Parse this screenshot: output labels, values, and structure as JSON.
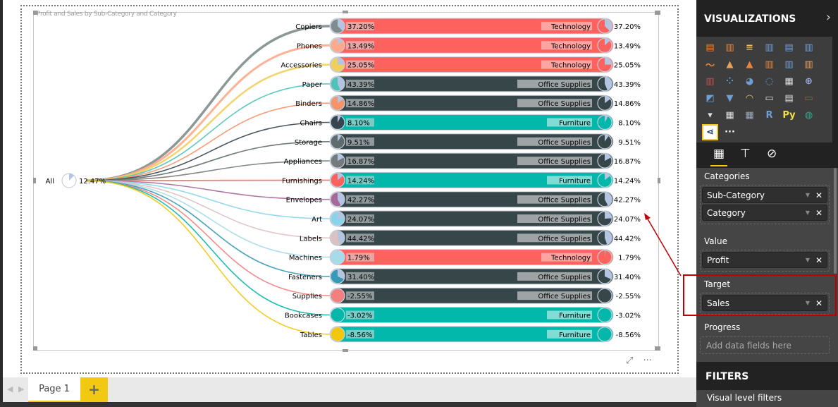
{
  "visual": {
    "title": "Profit and Sales by Sub-Category and Category",
    "root": {
      "label": "All",
      "value": "12.47%",
      "fraction": 0.1247
    },
    "footer_icons": [
      "focus-mode-icon",
      "more-options-icon"
    ],
    "more_label": "···",
    "focus_label": "⤢"
  },
  "colors": {
    "Technology": "#fd625e",
    "Office Supplies": "#374649",
    "Furniture": "#01b8aa",
    "label_bg": {
      "Technology": "#fba4a2",
      "Office Supplies": "#9ea4a5",
      "Furniture": "#80dcd4"
    },
    "target_slice": "#b3c5e0",
    "highlight": "#c00000"
  },
  "chart_data": {
    "type": "table",
    "title": "Profit and Sales by Sub-Category and Category",
    "rows": [
      {
        "sub": "Copiers",
        "value": "37.20%",
        "frac": 0.372,
        "category": "Technology",
        "color": "#7f8c8d"
      },
      {
        "sub": "Phones",
        "value": "13.49%",
        "frac": 0.1349,
        "category": "Technology",
        "color": "#fda98a"
      },
      {
        "sub": "Accessories",
        "value": "25.05%",
        "frac": 0.2505,
        "category": "Technology",
        "color": "#f2cf5b"
      },
      {
        "sub": "Paper",
        "value": "43.39%",
        "frac": 0.4339,
        "category": "Office Supplies",
        "color": "#4ec3b9"
      },
      {
        "sub": "Binders",
        "value": "14.86%",
        "frac": 0.1486,
        "category": "Office Supplies",
        "color": "#f5946a"
      },
      {
        "sub": "Chairs",
        "value": "8.10%",
        "frac": 0.081,
        "category": "Furniture",
        "color": "#36454f"
      },
      {
        "sub": "Storage",
        "value": "9.51%",
        "frac": 0.0951,
        "category": "Office Supplies",
        "color": "#5f6b6d"
      },
      {
        "sub": "Appliances",
        "value": "16.87%",
        "frac": 0.1687,
        "category": "Office Supplies",
        "color": "#737b7d"
      },
      {
        "sub": "Furnishings",
        "value": "14.24%",
        "frac": 0.1424,
        "category": "Furniture",
        "color": "#fc625e"
      },
      {
        "sub": "Envelopes",
        "value": "42.27%",
        "frac": 0.4227,
        "category": "Office Supplies",
        "color": "#a66999"
      },
      {
        "sub": "Art",
        "value": "24.07%",
        "frac": 0.2407,
        "category": "Office Supplies",
        "color": "#8ad4eb"
      },
      {
        "sub": "Labels",
        "value": "44.42%",
        "frac": 0.4442,
        "category": "Office Supplies",
        "color": "#dfbfbf"
      },
      {
        "sub": "Machines",
        "value": "1.79%",
        "frac": 0.0179,
        "category": "Technology",
        "color": "#a6dcea"
      },
      {
        "sub": "Fasteners",
        "value": "31.40%",
        "frac": 0.314,
        "category": "Office Supplies",
        "color": "#3599b8"
      },
      {
        "sub": "Supplies",
        "value": "-2.55%",
        "frac": -0.0255,
        "category": "Office Supplies",
        "color": "#f47f7f"
      },
      {
        "sub": "Bookcases",
        "value": "-3.02%",
        "frac": -0.0302,
        "category": "Furniture",
        "color": "#01b8aa"
      },
      {
        "sub": "Tables",
        "value": "-8.56%",
        "frac": -0.0856,
        "category": "Furniture",
        "color": "#f2c80f"
      }
    ]
  },
  "tabs": {
    "page": "Page 1",
    "add": "+",
    "prev": "◀",
    "next": "▶"
  },
  "panel": {
    "title": "VISUALIZATIONS",
    "collapse": "›",
    "viz_icons": [
      {
        "name": "stacked-bar-icon",
        "g": "▤",
        "c": "#e8833a"
      },
      {
        "name": "stacked-column-icon",
        "g": "▥",
        "c": "#e8833a"
      },
      {
        "name": "clustered-bar-icon",
        "g": "≡",
        "c": "#e8c15a"
      },
      {
        "name": "clustered-column-icon",
        "g": "▥",
        "c": "#6f9fd8"
      },
      {
        "name": "100-stacked-bar-icon",
        "g": "▤",
        "c": "#6f9fd8"
      },
      {
        "name": "100-stacked-column-icon",
        "g": "▥",
        "c": "#6f9fd8"
      },
      {
        "name": "line-chart-icon",
        "g": "〜",
        "c": "#e8833a"
      },
      {
        "name": "area-chart-icon",
        "g": "▲",
        "c": "#e8a05a"
      },
      {
        "name": "stacked-area-icon",
        "g": "▲",
        "c": "#e8833a"
      },
      {
        "name": "line-column-icon",
        "g": "▥",
        "c": "#e8833a"
      },
      {
        "name": "line-clustered-column-icon",
        "g": "▥",
        "c": "#6f9fd8"
      },
      {
        "name": "ribbon-chart-icon",
        "g": "▥",
        "c": "#e8a05a"
      },
      {
        "name": "waterfall-icon",
        "g": "▥",
        "c": "#c0504d"
      },
      {
        "name": "scatter-icon",
        "g": "⁘",
        "c": "#6f9fd8"
      },
      {
        "name": "pie-chart-icon",
        "g": "◕",
        "c": "#6f9fd8"
      },
      {
        "name": "donut-chart-icon",
        "g": "◌",
        "c": "#6f9fd8"
      },
      {
        "name": "treemap-icon",
        "g": "▦",
        "c": "#ddd"
      },
      {
        "name": "map-icon",
        "g": "⊕",
        "c": "#9ad"
      },
      {
        "name": "filled-map-icon",
        "g": "◩",
        "c": "#6f9fd8"
      },
      {
        "name": "funnel-icon",
        "g": "▼",
        "c": "#6f9fd8"
      },
      {
        "name": "gauge-icon",
        "g": "◠",
        "c": "#e8c15a"
      },
      {
        "name": "card-icon",
        "g": "▭",
        "c": "#ddd"
      },
      {
        "name": "multi-row-card-icon",
        "g": "▤",
        "c": "#ddd"
      },
      {
        "name": "kpi-icon",
        "g": "▭",
        "c": "#c0504d"
      },
      {
        "name": "slicer-icon",
        "g": "▾",
        "c": "#ddd"
      },
      {
        "name": "table-icon",
        "g": "▦",
        "c": "#ddd"
      },
      {
        "name": "matrix-icon",
        "g": "▦",
        "c": "#9ab"
      },
      {
        "name": "r-visual-icon",
        "g": "R",
        "c": "#6f9fd8"
      },
      {
        "name": "python-visual-icon",
        "g": "Py",
        "c": "#f2e04a"
      },
      {
        "name": "arcgis-map-icon",
        "g": "◍",
        "c": "#3a8"
      },
      {
        "name": "custom-tree-visual-icon",
        "g": "⋖",
        "c": "#1f3a5c",
        "sel": true
      },
      {
        "name": "more-visuals-icon",
        "g": "···",
        "c": "#fff"
      }
    ],
    "tab_icons": [
      "fields-icon",
      "format-paint-roller-icon",
      "analytics-icon"
    ],
    "wells": {
      "categories": {
        "label": "Categories",
        "fields": [
          "Sub-Category",
          "Category"
        ]
      },
      "value": {
        "label": "Value",
        "fields": [
          "Profit"
        ]
      },
      "target": {
        "label": "Target",
        "fields": [
          "Sales"
        ]
      },
      "progress": {
        "label": "Progress",
        "placeholder": "Add data fields here"
      }
    },
    "filters_title": "FILTERS",
    "visual_filters": "Visual level filters"
  }
}
